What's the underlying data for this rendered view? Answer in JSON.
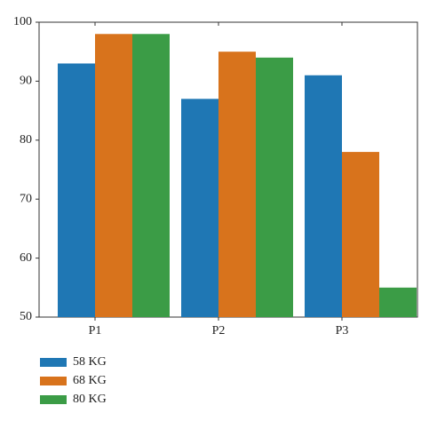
{
  "chart_data": {
    "type": "bar",
    "categories": [
      "P1",
      "P2",
      "P3"
    ],
    "series": [
      {
        "name": "58 KG",
        "color": "#1f77b4",
        "values": [
          93,
          87,
          91
        ]
      },
      {
        "name": "68 KG",
        "color": "#d8731c",
        "values": [
          98,
          95,
          78
        ]
      },
      {
        "name": "80 KG",
        "color": "#3b9c46",
        "values": [
          98,
          94,
          55
        ]
      }
    ],
    "ylim": [
      50,
      100
    ],
    "yticks": [
      50,
      60,
      70,
      80,
      90,
      100
    ],
    "grid": false,
    "legend": "bottom-left"
  }
}
